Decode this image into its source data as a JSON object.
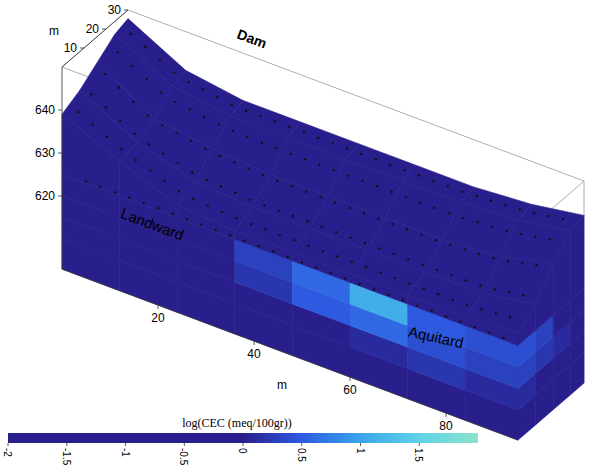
{
  "chart_data": {
    "type": "volume",
    "x_label": "m",
    "y_label": "m",
    "xlim": [
      0,
      95
    ],
    "xticks": [
      20,
      40,
      60,
      80
    ],
    "ylim": [
      0,
      30
    ],
    "yticks": [
      10,
      20,
      30
    ],
    "zlim": [
      603,
      650
    ],
    "zticks": [
      620,
      630,
      640
    ],
    "annotations": [
      "Dam",
      "Landward",
      "Aquitard"
    ],
    "colorbar": {
      "title": "log(CEC (meq/100gr))",
      "range": [
        -2,
        2
      ],
      "ticks": [
        -2,
        -1.5,
        -1,
        -0.5,
        0,
        0.5,
        1,
        1.5
      ]
    },
    "surface": {
      "x": [
        0,
        12,
        24,
        36,
        48,
        60,
        72,
        84,
        95
      ],
      "y": [
        0,
        8,
        16,
        24,
        30
      ],
      "z": [
        [
          639,
          633,
          628,
          627,
          627,
          627,
          627,
          627,
          628
        ],
        [
          641,
          634,
          630,
          629,
          629,
          629,
          629,
          629,
          631
        ],
        [
          644,
          636,
          634,
          633,
          633,
          633,
          633,
          634,
          637
        ],
        [
          647,
          640,
          638,
          638,
          638,
          638,
          638,
          639,
          641
        ],
        [
          648,
          641,
          639,
          639,
          639,
          639,
          639,
          640,
          642
        ]
      ],
      "values": [
        [
          -0.9,
          -1.2,
          -0.6,
          -0.3,
          -0.8,
          -1.4,
          -1.5,
          -1.2
        ],
        [
          -1.3,
          -0.9,
          -0.2,
          -0.7,
          -1.0,
          -1.2,
          -1.6,
          -1.0
        ],
        [
          -1.0,
          -1.6,
          -0.8,
          -0.4,
          -0.9,
          -1.1,
          -1.3,
          -0.8
        ],
        [
          -0.5,
          -1.0,
          -1.2,
          -0.9,
          -0.6,
          -1.0,
          -1.1,
          -1.6
        ]
      ]
    },
    "z_edges": [
      603,
      610,
      615,
      620,
      625
    ],
    "front_face": {
      "values": [
        [
          -0.8,
          -0.9,
          -1.0,
          -0.9,
          -0.7,
          -0.5,
          -0.3,
          -0.2
        ],
        [
          -0.9,
          -0.9,
          -0.8,
          -0.5,
          -0.2,
          0.1,
          0.2,
          0.1
        ],
        [
          -0.8,
          -0.7,
          -0.5,
          0.2,
          0.5,
          0.6,
          0.4,
          0.3
        ],
        [
          -0.8,
          -0.7,
          -0.6,
          0.3,
          0.6,
          1.1,
          0.5,
          0.4
        ],
        [
          -0.7,
          -0.8,
          -0.9,
          -1.2,
          -1.4,
          -1.1,
          -1.3,
          -0.9
        ]
      ]
    },
    "right_face": {
      "values": [
        [
          -0.2,
          -0.3,
          -0.4,
          -0.5
        ],
        [
          0.1,
          0.0,
          -0.1,
          -0.3
        ],
        [
          0.3,
          0.2,
          0.1,
          -0.2
        ],
        [
          0.4,
          0.3,
          0.0,
          -0.3
        ],
        [
          -1.0,
          -1.5,
          -1.2,
          -0.8
        ]
      ]
    }
  }
}
